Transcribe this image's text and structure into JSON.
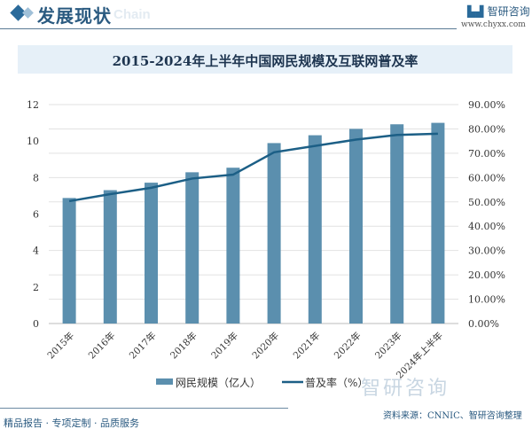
{
  "header": {
    "title": "发展现状",
    "ghost": "Chain",
    "brand": "智研咨询",
    "url": "www.chyxx.com"
  },
  "footer": {
    "tagline": "精品报告 · 专项定制 · 品质服务",
    "source": "资料来源：CNNIC、智研咨询整理",
    "watermark": "智研咨询"
  },
  "colors": {
    "bar": "#5b8fae",
    "line": "#1c5f86",
    "grid": "#e2e2e2"
  },
  "chart_data": {
    "type": "bar+line",
    "title": "2015-2024年上半年中国网民规模及互联网普及率",
    "categories": [
      "2015年",
      "2016年",
      "2017年",
      "2018年",
      "2019年",
      "2020年",
      "2021年",
      "2022年",
      "2023年",
      "2024年上半年"
    ],
    "series": [
      {
        "name": "网民规模（亿人）",
        "type": "bar",
        "axis": "left",
        "values": [
          6.88,
          7.31,
          7.72,
          8.29,
          8.54,
          9.89,
          10.32,
          10.67,
          10.92,
          11.0
        ]
      },
      {
        "name": "普及率（%）",
        "type": "line",
        "axis": "right",
        "values": [
          50.3,
          53.2,
          55.8,
          59.6,
          61.2,
          70.4,
          73.0,
          75.6,
          77.5,
          78.0
        ]
      }
    ],
    "ylim": [
      0,
      12
    ],
    "yticks": [
      "0",
      "2",
      "4",
      "6",
      "8",
      "10",
      "12"
    ],
    "y2lim": [
      0,
      90
    ],
    "y2ticks": [
      "0.00%",
      "10.00%",
      "20.00%",
      "30.00%",
      "40.00%",
      "50.00%",
      "60.00%",
      "70.00%",
      "80.00%",
      "90.00%"
    ],
    "grid": true,
    "legend": "bottom"
  }
}
